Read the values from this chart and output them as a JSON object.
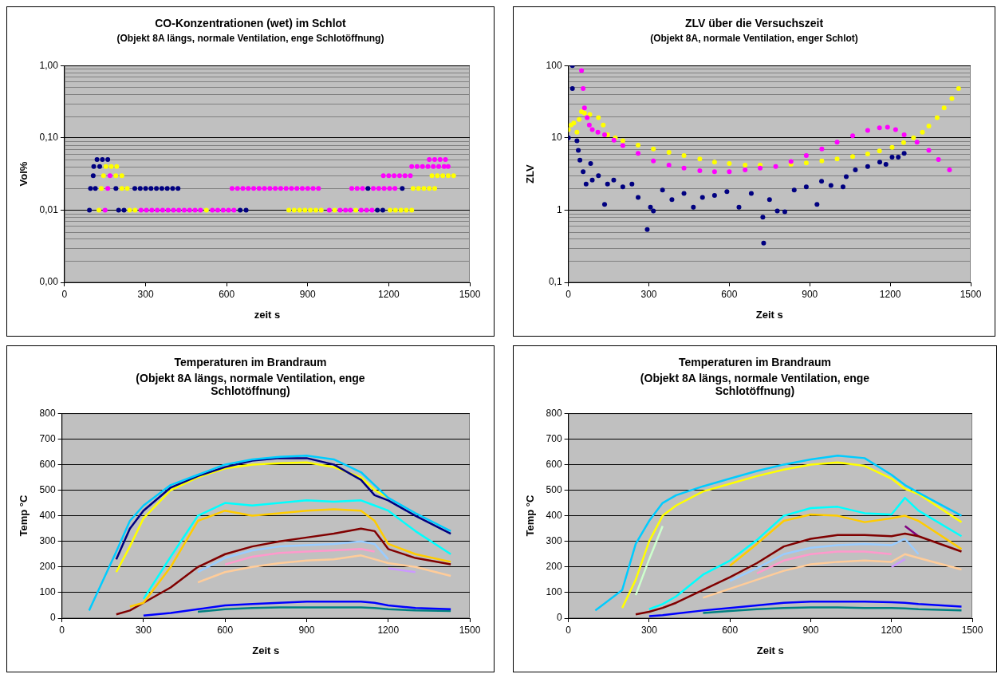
{
  "chart_data": [
    {
      "type": "scatter",
      "title": "CO-Konzentrationen (wet) im Schlot",
      "subtitle": "(Objekt 8A längs, normale Ventilation, enge Schlotöffnung)",
      "xlabel": "zeit s",
      "ylabel": "Vol%",
      "log": "y",
      "grid": "y",
      "legend": false,
      "marker": "circle",
      "xlim": [
        0,
        1500
      ],
      "xticks": [
        0,
        300,
        600,
        900,
        1200,
        1500
      ],
      "ylim": [
        0.001,
        1
      ],
      "yticks": [
        {
          "value": 0.001,
          "label": "0,00"
        },
        {
          "value": 0.01,
          "label": "0,01"
        },
        {
          "value": 0.1,
          "label": "0,10"
        },
        {
          "value": 1,
          "label": "1,00"
        }
      ],
      "series": [
        {
          "color": "#000080",
          "x": [
            92,
            96,
            114,
            106,
            108,
            130,
            120,
            140,
            160,
            190,
            200,
            220,
            260,
            280,
            300,
            320,
            340,
            360,
            380,
            400,
            420,
            650,
            672,
            1123,
            1158,
            1178,
            1250
          ],
          "values": [
            0.01,
            0.02,
            0.02,
            0.03,
            0.04,
            0.04,
            0.05,
            0.05,
            0.05,
            0.02,
            0.01,
            0.01,
            0.02,
            0.02,
            0.02,
            0.02,
            0.02,
            0.02,
            0.02,
            0.02,
            0.02,
            0.01,
            0.01,
            0.02,
            0.01,
            0.01,
            0.02
          ]
        },
        {
          "color": "#ff00ff",
          "x": [
            150,
            160,
            168,
            283,
            303,
            323,
            343,
            363,
            383,
            403,
            423,
            443,
            463,
            483,
            503,
            547,
            567,
            587,
            607,
            627,
            620,
            640,
            660,
            680,
            700,
            720,
            740,
            760,
            780,
            800,
            820,
            840,
            860,
            880,
            900,
            920,
            940,
            980,
            1020,
            1040,
            1058,
            1098,
            1118,
            1138,
            1063,
            1083,
            1103,
            1143,
            1163,
            1183,
            1203,
            1223,
            1180,
            1200,
            1220,
            1240,
            1260,
            1280,
            1285,
            1305,
            1325,
            1345,
            1365,
            1385,
            1405,
            1420,
            1350,
            1370,
            1390,
            1410
          ],
          "values": [
            0.01,
            0.02,
            0.03,
            0.01,
            0.01,
            0.01,
            0.01,
            0.01,
            0.01,
            0.01,
            0.01,
            0.01,
            0.01,
            0.01,
            0.01,
            0.01,
            0.01,
            0.01,
            0.01,
            0.01,
            0.02,
            0.02,
            0.02,
            0.02,
            0.02,
            0.02,
            0.02,
            0.02,
            0.02,
            0.02,
            0.02,
            0.02,
            0.02,
            0.02,
            0.02,
            0.02,
            0.02,
            0.01,
            0.01,
            0.01,
            0.01,
            0.01,
            0.01,
            0.01,
            0.02,
            0.02,
            0.02,
            0.02,
            0.02,
            0.02,
            0.02,
            0.02,
            0.03,
            0.03,
            0.03,
            0.03,
            0.03,
            0.03,
            0.04,
            0.04,
            0.04,
            0.04,
            0.04,
            0.04,
            0.04,
            0.04,
            0.05,
            0.05,
            0.05,
            0.05
          ]
        },
        {
          "color": "#ffff00",
          "x": [
            127,
            241,
            261,
            525,
            830,
            850,
            870,
            890,
            910,
            930,
            950,
            1000,
            1078,
            1205,
            1225,
            1245,
            1265,
            1285,
            136,
            212,
            232,
            1290,
            1310,
            1330,
            1350,
            1370,
            144,
            190,
            212,
            1360,
            1380,
            1400,
            1420,
            1440,
            153,
            173,
            193
          ],
          "values": [
            0.01,
            0.01,
            0.01,
            0.01,
            0.01,
            0.01,
            0.01,
            0.01,
            0.01,
            0.01,
            0.01,
            0.01,
            0.01,
            0.01,
            0.01,
            0.01,
            0.01,
            0.01,
            0.02,
            0.02,
            0.02,
            0.02,
            0.02,
            0.02,
            0.02,
            0.02,
            0.03,
            0.03,
            0.03,
            0.03,
            0.03,
            0.03,
            0.03,
            0.03,
            0.04,
            0.04,
            0.04
          ]
        }
      ]
    },
    {
      "type": "scatter",
      "title": "ZLV über die Versuchszeit",
      "subtitle": "(Objekt 8A, normale Ventilation, enger Schlot)",
      "xlabel": "Zeit s",
      "ylabel": "ZLV",
      "log": "y",
      "grid": "y",
      "legend": false,
      "marker": "circle",
      "xlim": [
        0,
        1500
      ],
      "xticks": [
        0,
        300,
        600,
        900,
        1200,
        1500
      ],
      "ylim": [
        0.1,
        100
      ],
      "yticks": [
        {
          "value": 0.1,
          "label": "0,1"
        },
        1,
        10,
        100
      ],
      "series": [
        {
          "color": "#000080",
          "x": [
            0,
            15,
            15,
            32,
            37,
            43,
            55,
            66,
            83,
            89,
            112,
            135,
            146,
            169,
            203,
            237,
            260,
            294,
            306,
            317,
            351,
            386,
            431,
            466,
            500,
            545,
            591,
            636,
            682,
            725,
            728,
            750,
            779,
            807,
            842,
            887,
            927,
            944,
            979,
            1024,
            1036,
            1070,
            1116,
            1161,
            1184,
            1207,
            1230,
            1252
          ],
          "values": [
            10,
            100,
            48,
            9.1,
            6.7,
            4.9,
            3.4,
            2.3,
            4.4,
            2.6,
            3.0,
            1.2,
            2.3,
            2.6,
            2.1,
            2.3,
            1.5,
            0.54,
            1.1,
            0.97,
            1.9,
            1.4,
            1.7,
            1.1,
            1.5,
            1.6,
            1.8,
            1.1,
            1.7,
            0.8,
            0.35,
            1.4,
            0.97,
            0.95,
            1.9,
            2.1,
            1.2,
            2.5,
            2.2,
            2.1,
            2.9,
            3.6,
            4.0,
            4.6,
            4.3,
            5.4,
            5.4,
            6.1
          ]
        },
        {
          "color": "#ff00ff",
          "x": [
            49,
            55,
            60,
            70,
            78,
            89,
            110,
            135,
            170,
            203,
            260,
            317,
            375,
            431,
            490,
            545,
            600,
            659,
            715,
            773,
            830,
            887,
            945,
            1002,
            1060,
            1116,
            1160,
            1190,
            1220,
            1252,
            1300,
            1344,
            1380,
            1421
          ],
          "values": [
            85,
            48,
            26,
            19,
            15,
            13,
            12,
            11,
            9.3,
            7.8,
            6.1,
            4.8,
            4.2,
            3.8,
            3.5,
            3.4,
            3.4,
            3.6,
            3.8,
            4.0,
            4.7,
            5.7,
            7.0,
            8.7,
            10.7,
            12.7,
            13.8,
            14,
            13,
            11,
            8.7,
            6.7,
            5.0,
            3.6
          ]
        },
        {
          "color": "#ffff00",
          "x": [
            0,
            10,
            20,
            32,
            40,
            49,
            60,
            80,
            112,
            130,
            146,
            175,
            203,
            260,
            317,
            375,
            431,
            490,
            545,
            600,
            659,
            715,
            773,
            830,
            887,
            945,
            1002,
            1060,
            1116,
            1160,
            1207,
            1250,
            1287,
            1320,
            1344,
            1375,
            1401,
            1430,
            1455
          ],
          "values": [
            13,
            15,
            16,
            12,
            18,
            23,
            22,
            21,
            19,
            15,
            11,
            10,
            9.1,
            7.9,
            7.0,
            6.3,
            5.7,
            5.1,
            4.6,
            4.4,
            4.2,
            4.2,
            null,
            4.3,
            4.5,
            4.8,
            5.1,
            5.5,
            6.0,
            6.6,
            7.4,
            8.6,
            10,
            12,
            14.6,
            19,
            26,
            35,
            48
          ]
        }
      ]
    },
    {
      "type": "line",
      "title": "Temperaturen im Brandraum",
      "subtitle": "(Objekt 8A längs, normale Ventilation, enge Schlotöffnung)",
      "xlabel": "Zeit s",
      "ylabel": "Temp °C",
      "grid": "y",
      "legend": false,
      "marker": "none",
      "line_style": "solid",
      "xlim": [
        0,
        1500
      ],
      "xticks": [
        0,
        300,
        600,
        900,
        1200,
        1500
      ],
      "ylim": [
        0,
        800
      ],
      "yticks": [
        0,
        100,
        200,
        300,
        400,
        500,
        600,
        700,
        800
      ],
      "x": [
        100,
        200,
        250,
        300,
        400,
        500,
        600,
        700,
        800,
        900,
        1000,
        1100,
        1150,
        1200,
        1300,
        1430
      ],
      "series": [
        {
          "color": "#00ccff",
          "values": [
            30,
            260,
            380,
            440,
            520,
            560,
            600,
            620,
            630,
            635,
            620,
            570,
            520,
            470,
            410,
            340
          ]
        },
        {
          "color": "#000080",
          "values": [
            null,
            230,
            350,
            420,
            510,
            555,
            590,
            615,
            625,
            625,
            600,
            540,
            480,
            460,
            400,
            330
          ]
        },
        {
          "color": "#ffff00",
          "values": [
            null,
            180,
            280,
            390,
            500,
            550,
            585,
            600,
            605,
            608,
            590,
            550,
            500,
            470,
            null,
            null
          ]
        },
        {
          "color": "#00ffff",
          "values": [
            null,
            null,
            null,
            75,
            240,
            400,
            450,
            440,
            450,
            460,
            455,
            460,
            440,
            420,
            340,
            250
          ]
        },
        {
          "color": "#ffcc00",
          "values": [
            null,
            null,
            45,
            60,
            200,
            380,
            420,
            400,
            410,
            420,
            425,
            420,
            380,
            290,
            250,
            220
          ]
        },
        {
          "color": "#800000",
          "values": [
            null,
            15,
            30,
            60,
            120,
            200,
            250,
            280,
            300,
            315,
            330,
            350,
            340,
            270,
            235,
            210
          ]
        },
        {
          "color": "#99ccff",
          "values": [
            null,
            null,
            null,
            null,
            null,
            180,
            235,
            265,
            280,
            285,
            290,
            300,
            290,
            230,
            null,
            null
          ]
        },
        {
          "color": "#ff99cc",
          "values": [
            null,
            null,
            null,
            null,
            null,
            null,
            210,
            240,
            255,
            260,
            265,
            270,
            260,
            null,
            null,
            null
          ]
        },
        {
          "color": "#ffcc99",
          "values": [
            null,
            null,
            null,
            null,
            null,
            140,
            180,
            200,
            215,
            225,
            230,
            245,
            230,
            215,
            200,
            165
          ]
        },
        {
          "color": "#cc99ff",
          "values": [
            null,
            null,
            null,
            null,
            null,
            null,
            null,
            null,
            null,
            null,
            null,
            null,
            null,
            195,
            180,
            null
          ]
        },
        {
          "color": "#0000ff",
          "values": [
            null,
            null,
            null,
            10,
            20,
            35,
            50,
            55,
            60,
            65,
            65,
            65,
            60,
            50,
            40,
            35
          ]
        },
        {
          "color": "#008080",
          "values": [
            null,
            null,
            null,
            null,
            null,
            25,
            35,
            40,
            42,
            42,
            42,
            42,
            40,
            35,
            30,
            28
          ]
        }
      ]
    },
    {
      "type": "line",
      "title": "Temperaturen im Brandraum",
      "subtitle": "(Objekt 8A längs, normale Ventilation, enge Schlotöffnung)",
      "xlabel": "Zeit s",
      "ylabel": "Temp °C",
      "grid": "y",
      "legend": false,
      "marker": "none",
      "line_style": "solid",
      "xlim": [
        0,
        1500
      ],
      "xticks": [
        0,
        300,
        600,
        900,
        1200,
        1500
      ],
      "ylim": [
        0,
        800
      ],
      "yticks": [
        0,
        100,
        200,
        300,
        400,
        500,
        600,
        700,
        800
      ],
      "x": [
        100,
        200,
        250,
        300,
        350,
        400,
        500,
        600,
        700,
        800,
        900,
        1000,
        1100,
        1200,
        1250,
        1300,
        1460
      ],
      "series": [
        {
          "color": "#00ccff",
          "values": [
            30,
            110,
            290,
            380,
            450,
            480,
            515,
            545,
            575,
            600,
            620,
            635,
            625,
            560,
            520,
            490,
            400
          ]
        },
        {
          "color": "#ffff00",
          "values": [
            null,
            40,
            150,
            300,
            400,
            440,
            495,
            525,
            555,
            580,
            600,
            608,
            595,
            545,
            505,
            485,
            375
          ]
        },
        {
          "color": "#ccffcc",
          "values": [
            null,
            null,
            90,
            230,
            360,
            null,
            null,
            null,
            null,
            null,
            null,
            null,
            null,
            null,
            null,
            null,
            null
          ]
        },
        {
          "color": "#00ffff",
          "values": [
            null,
            null,
            null,
            35,
            55,
            85,
            170,
            225,
            305,
            400,
            430,
            435,
            410,
            405,
            470,
            420,
            320
          ]
        },
        {
          "color": "#ffcc00",
          "values": [
            null,
            null,
            null,
            null,
            null,
            null,
            null,
            205,
            290,
            380,
            405,
            400,
            375,
            390,
            400,
            380,
            270
          ]
        },
        {
          "color": "#800000",
          "values": [
            null,
            null,
            15,
            25,
            40,
            60,
            110,
            160,
            215,
            280,
            310,
            325,
            325,
            320,
            330,
            320,
            260
          ]
        },
        {
          "color": "#800080",
          "values": [
            null,
            null,
            null,
            null,
            null,
            null,
            null,
            null,
            null,
            null,
            null,
            null,
            null,
            null,
            360,
            320,
            null
          ]
        },
        {
          "color": "#99ccff",
          "values": [
            null,
            null,
            null,
            null,
            null,
            null,
            null,
            145,
            195,
            250,
            275,
            285,
            290,
            285,
            310,
            250,
            null
          ]
        },
        {
          "color": "#ff99cc",
          "values": [
            null,
            null,
            null,
            null,
            null,
            null,
            null,
            null,
            175,
            225,
            250,
            260,
            260,
            250,
            null,
            null,
            null
          ]
        },
        {
          "color": "#ffcc99",
          "values": [
            null,
            null,
            null,
            null,
            null,
            null,
            80,
            115,
            150,
            185,
            210,
            220,
            225,
            220,
            250,
            235,
            190
          ]
        },
        {
          "color": "#cc99ff",
          "values": [
            null,
            null,
            null,
            null,
            null,
            null,
            null,
            null,
            null,
            null,
            null,
            null,
            null,
            200,
            230,
            null,
            null
          ]
        },
        {
          "color": "#0000ff",
          "values": [
            null,
            null,
            null,
            8,
            12,
            18,
            30,
            40,
            50,
            60,
            65,
            65,
            65,
            62,
            60,
            55,
            45
          ]
        },
        {
          "color": "#008080",
          "values": [
            null,
            null,
            null,
            null,
            null,
            null,
            20,
            28,
            35,
            40,
            42,
            42,
            40,
            40,
            38,
            35,
            30
          ]
        }
      ]
    }
  ]
}
